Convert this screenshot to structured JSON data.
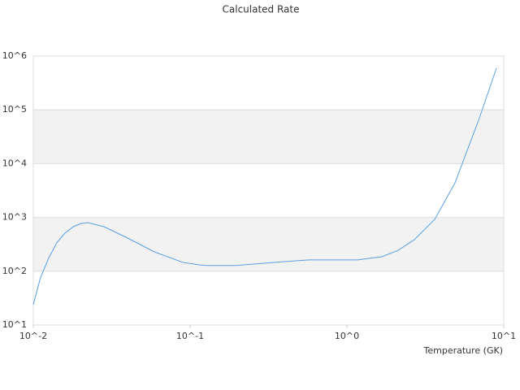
{
  "chart_data": {
    "type": "line",
    "title": "Calculated Rate",
    "x_label": "Temperature (GK)",
    "log_x": true,
    "log_y": true,
    "grid": true,
    "xlim": [
      0.01,
      10
    ],
    "ylim": [
      10,
      1000000
    ],
    "xticks": [
      {
        "value": 0.01,
        "label": "10^-2"
      },
      {
        "value": 0.1,
        "label": "10^-1"
      },
      {
        "value": 1,
        "label": "10^0"
      },
      {
        "value": 10,
        "label": "10^1"
      }
    ],
    "yticks": [
      {
        "value": 10,
        "label": "10^1"
      },
      {
        "value": 100,
        "label": "10^2"
      },
      {
        "value": 1000,
        "label": "10^3"
      },
      {
        "value": 10000,
        "label": "10^4"
      },
      {
        "value": 100000,
        "label": "10^5"
      },
      {
        "value": 1000000,
        "label": "10^6"
      }
    ],
    "x": [
      0.01,
      0.0111,
      0.0125,
      0.0141,
      0.0159,
      0.018,
      0.0202,
      0.0222,
      0.0282,
      0.039,
      0.0592,
      0.0898,
      0.114,
      0.128,
      0.195,
      0.4,
      0.57,
      1.17,
      1.67,
      2.12,
      2.69,
      3.63,
      4.89,
      7.0,
      8.98
    ],
    "series": [
      {
        "color": "#5a9fe3",
        "values": [
          24,
          75,
          173,
          336,
          509,
          673,
          773,
          800,
          673,
          428,
          229,
          146,
          131,
          128,
          128,
          151,
          162,
          162,
          186,
          245,
          385,
          920,
          4400,
          71100,
          593000
        ]
      }
    ]
  }
}
